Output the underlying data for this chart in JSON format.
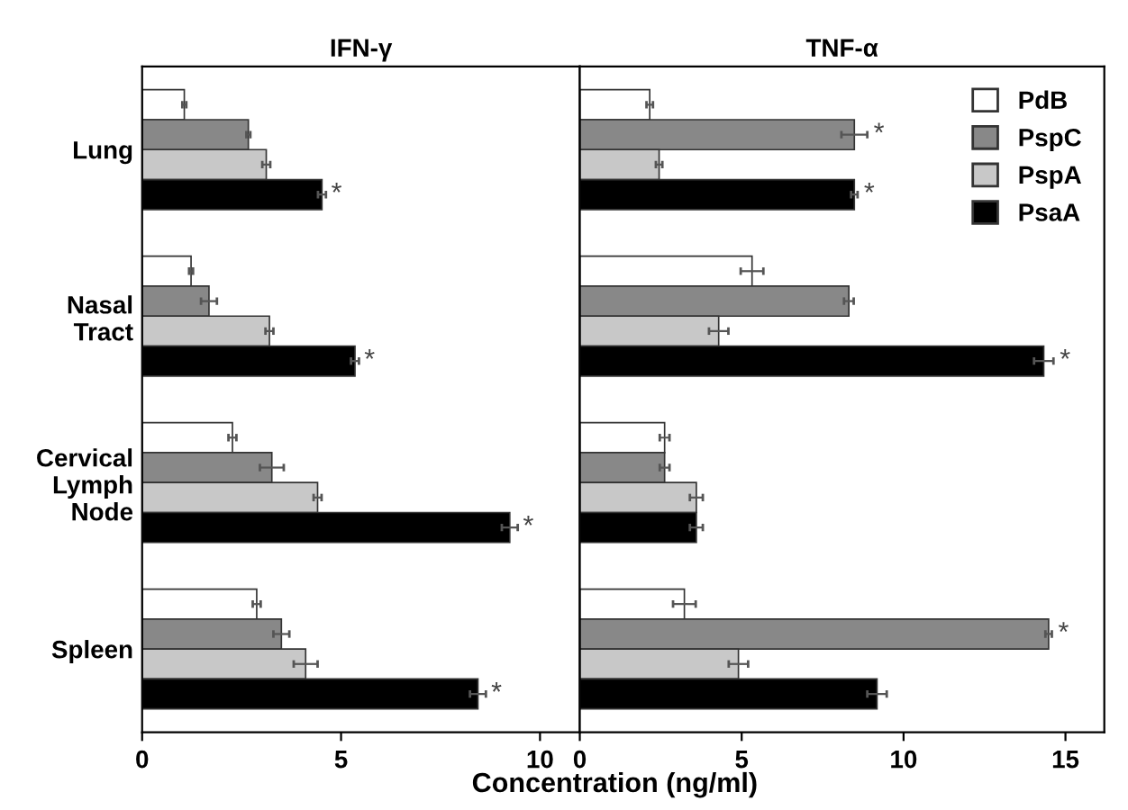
{
  "chart_data": [
    {
      "type": "bar",
      "orientation": "horizontal",
      "title": "IFN-γ",
      "xlabel": "Concentration (ng/ml)",
      "categories": [
        "Lung",
        "Nasal\nTract",
        "Cervical\nLymph\nNode",
        "Spleen"
      ],
      "xlim": [
        0,
        11
      ],
      "xticks": [
        0,
        5,
        10
      ],
      "grid": false,
      "legend": false,
      "series": [
        {
          "color": "#ffffff",
          "values": [
            1.06,
            1.23,
            2.27,
            2.88
          ],
          "errors": [
            0.05,
            0.05,
            0.1,
            0.1
          ]
        },
        {
          "color": "#888888",
          "values": [
            2.67,
            1.68,
            3.26,
            3.5
          ],
          "errors": [
            0.05,
            0.2,
            0.3,
            0.2
          ]
        },
        {
          "color": "#c8c8c8",
          "values": [
            3.12,
            3.2,
            4.41,
            4.11
          ],
          "errors": [
            0.1,
            0.1,
            0.1,
            0.3
          ]
        },
        {
          "color": "#000000",
          "values": [
            4.52,
            5.35,
            9.24,
            8.44
          ],
          "errors": [
            0.1,
            0.1,
            0.2,
            0.2
          ],
          "value_labels": [
            "*",
            "*",
            "*",
            "*"
          ]
        }
      ]
    },
    {
      "type": "bar",
      "orientation": "horizontal",
      "title": "TNF-α",
      "categories": [
        null,
        null,
        null,
        null
      ],
      "xlim": [
        0,
        16.2
      ],
      "xticks": [
        0,
        5,
        10,
        15
      ],
      "grid": false,
      "legend": "top right",
      "series": [
        {
          "name": "PdB",
          "color": "#ffffff",
          "values": [
            2.16,
            5.32,
            2.62,
            3.23
          ],
          "errors": [
            0.1,
            0.35,
            0.15,
            0.35
          ]
        },
        {
          "name": "PspC",
          "color": "#888888",
          "values": [
            8.48,
            8.31,
            2.62,
            14.48
          ],
          "errors": [
            0.4,
            0.15,
            0.15,
            0.1
          ],
          "value_labels": [
            "*",
            null,
            null,
            "*"
          ]
        },
        {
          "name": "PspA",
          "color": "#c8c8c8",
          "values": [
            2.45,
            4.29,
            3.6,
            4.9
          ],
          "errors": [
            0.1,
            0.3,
            0.2,
            0.3
          ]
        },
        {
          "name": "PsaA",
          "color": "#000000",
          "values": [
            8.48,
            14.33,
            3.6,
            9.18
          ],
          "errors": [
            0.1,
            0.3,
            0.2,
            0.3
          ],
          "value_labels": [
            "*",
            "*",
            null,
            null
          ]
        }
      ]
    }
  ]
}
